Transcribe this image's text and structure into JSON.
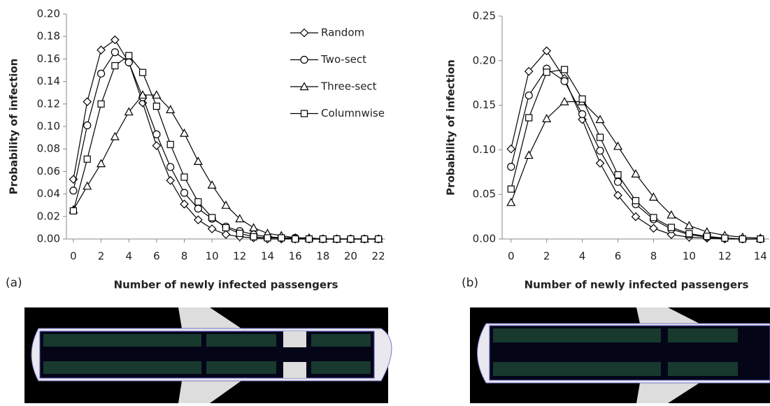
{
  "chart_data": [
    {
      "type": "line",
      "label": "(a)",
      "y_label": "Probability of infection",
      "x_label": "Number of newly infected passengers",
      "x": [
        0,
        1,
        2,
        3,
        4,
        5,
        6,
        7,
        8,
        9,
        10,
        11,
        12,
        13,
        14,
        15,
        16,
        17,
        18,
        19,
        20,
        21,
        22
      ],
      "xlim": [
        -0.5,
        22.5
      ],
      "xticks": [
        0,
        2,
        4,
        6,
        8,
        10,
        12,
        14,
        16,
        18,
        20,
        22
      ],
      "ylim": [
        0,
        0.2
      ],
      "yticks": [
        {
          "value": 0,
          "label": "0.00"
        },
        {
          "value": 0.02,
          "label": "0.02"
        },
        {
          "value": 0.04,
          "label": "0.04"
        },
        {
          "value": 0.06,
          "label": "0.06"
        },
        {
          "value": 0.08,
          "label": "0.08"
        },
        {
          "value": 0.1,
          "label": "0.10"
        },
        {
          "value": 0.12,
          "label": "0.12"
        },
        {
          "value": 0.14,
          "label": "0.14"
        },
        {
          "value": 0.16,
          "label": "0.16"
        },
        {
          "value": 0.18,
          "label": "0.18"
        },
        {
          "value": 0.2,
          "label": "0.20"
        }
      ],
      "legend": "top-right",
      "series": [
        {
          "name": "Random",
          "marker": "diamond",
          "color": "#000000",
          "values": [
            0.053,
            0.122,
            0.168,
            0.177,
            0.157,
            0.121,
            0.083,
            0.052,
            0.031,
            0.017,
            0.009,
            0.004,
            0.002,
            0.001,
            0,
            0,
            0,
            0,
            0,
            0,
            0,
            0,
            0
          ]
        },
        {
          "name": "Two-sect",
          "marker": "circle",
          "color": "#000000",
          "values": [
            0.043,
            0.101,
            0.147,
            0.166,
            0.157,
            0.126,
            0.093,
            0.064,
            0.041,
            0.027,
            0.018,
            0.011,
            0.007,
            0.004,
            0.002,
            0.001,
            0.001,
            0,
            0,
            0,
            0,
            0,
            0
          ]
        },
        {
          "name": "Three-sect",
          "marker": "triangle",
          "color": "#000000",
          "values": [
            0.026,
            0.047,
            0.067,
            0.091,
            0.113,
            0.128,
            0.128,
            0.115,
            0.094,
            0.069,
            0.048,
            0.03,
            0.018,
            0.01,
            0.005,
            0.003,
            0.001,
            0.001,
            0,
            0,
            0,
            0,
            0
          ]
        },
        {
          "name": "Columnwise",
          "marker": "square",
          "color": "#000000",
          "values": [
            0.025,
            0.071,
            0.12,
            0.154,
            0.163,
            0.148,
            0.118,
            0.084,
            0.055,
            0.033,
            0.019,
            0.01,
            0.005,
            0.002,
            0.001,
            0.001,
            0,
            0,
            0,
            0,
            0,
            0,
            0
          ]
        }
      ]
    },
    {
      "type": "line",
      "label": "(b)",
      "y_label": "Probability of infection",
      "x_label": "Number of newly infected passengers",
      "x": [
        0,
        1,
        2,
        3,
        4,
        5,
        6,
        7,
        8,
        9,
        10,
        11,
        12,
        13,
        14
      ],
      "xlim": [
        -0.5,
        14.5
      ],
      "xticks": [
        0,
        2,
        4,
        6,
        8,
        10,
        12,
        14
      ],
      "ylim": [
        0,
        0.25
      ],
      "yticks": [
        {
          "value": 0,
          "label": "0.00"
        },
        {
          "value": 0.05,
          "label": "0.05"
        },
        {
          "value": 0.1,
          "label": "0.10"
        },
        {
          "value": 0.15,
          "label": "0.15"
        },
        {
          "value": 0.2,
          "label": "0.20"
        },
        {
          "value": 0.25,
          "label": "0.25"
        }
      ],
      "series": [
        {
          "marker": "diamond",
          "color": "#000000",
          "values": [
            0.101,
            0.188,
            0.211,
            0.18,
            0.134,
            0.085,
            0.049,
            0.025,
            0.012,
            0.005,
            0.002,
            0.001,
            0,
            0,
            0
          ]
        },
        {
          "marker": "circle",
          "color": "#000000",
          "values": [
            0.081,
            0.161,
            0.191,
            0.177,
            0.14,
            0.099,
            0.064,
            0.039,
            0.022,
            0.011,
            0.005,
            0.002,
            0.001,
            0,
            0
          ]
        },
        {
          "marker": "triangle",
          "color": "#000000",
          "values": [
            0.041,
            0.094,
            0.135,
            0.154,
            0.154,
            0.134,
            0.104,
            0.073,
            0.047,
            0.027,
            0.015,
            0.008,
            0.004,
            0.002,
            0.001
          ]
        },
        {
          "marker": "square",
          "color": "#000000",
          "values": [
            0.056,
            0.136,
            0.187,
            0.19,
            0.157,
            0.114,
            0.072,
            0.043,
            0.024,
            0.013,
            0.006,
            0.003,
            0.001,
            0,
            0
          ]
        }
      ]
    }
  ]
}
